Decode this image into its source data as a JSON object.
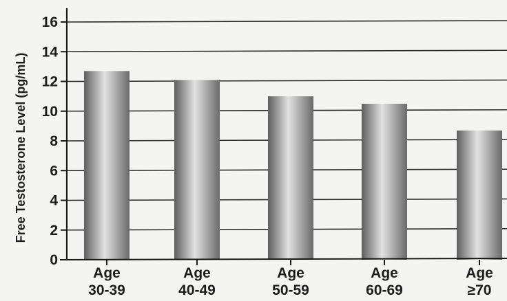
{
  "chart_data": {
    "type": "bar",
    "title": "",
    "xlabel": "",
    "ylabel": "Free Testosterone Level (pg/mL)",
    "categories": [
      [
        "Age",
        "30-39"
      ],
      [
        "Age",
        "40-49"
      ],
      [
        "Age",
        "50-59"
      ],
      [
        "Age",
        "60-69"
      ],
      [
        "Age",
        "≥70"
      ]
    ],
    "values": [
      12.7,
      12.1,
      11.0,
      10.5,
      8.7
    ],
    "ylim": [
      0,
      16
    ],
    "yticks": [
      0,
      2,
      4,
      6,
      8,
      10,
      12,
      14,
      16
    ],
    "grid": true,
    "legend": "none",
    "colors": {
      "bar_dark": "#5e5e5e",
      "bar_light": "#e2e2e2",
      "grid": "#2a2a2a",
      "axis": "#1a1a1a",
      "text": "#1c1c1c"
    }
  }
}
